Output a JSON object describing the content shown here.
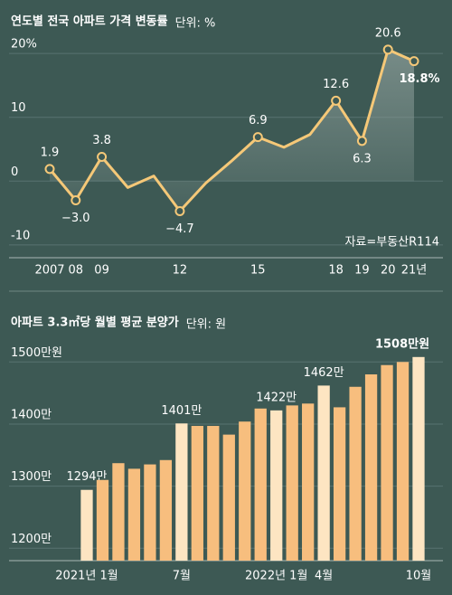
{
  "chart_data": [
    {
      "type": "line",
      "title": "연도별 전국 아파트 가격 변동률",
      "subtitle": "단위: %",
      "source": "자료=부동산R114",
      "categories": [
        "2007",
        "08",
        "09",
        null,
        null,
        "12",
        null,
        null,
        "15",
        null,
        null,
        "18",
        "19",
        "20",
        "21년"
      ],
      "values": [
        1.9,
        -3.0,
        3.8,
        -1.0,
        0.8,
        -4.7,
        -0.3,
        3.2,
        6.9,
        5.3,
        7.3,
        12.6,
        6.3,
        20.6,
        18.8
      ],
      "value_labels": [
        "1.9",
        "−3.0",
        "3.8",
        null,
        null,
        "−4.7",
        null,
        null,
        "6.9",
        null,
        null,
        "12.6",
        "6.3",
        "20.6",
        "18.8%"
      ],
      "color": "#f5c878",
      "ylim": [
        -12,
        22
      ],
      "yticks": [
        {
          "value": 20,
          "label": "20%"
        },
        10,
        0,
        -10
      ],
      "grid": true
    },
    {
      "type": "bar",
      "title": "아파트 3.3㎡당 월별 평균 분양가",
      "subtitle": "단위: 원",
      "categories": [
        "2021년 1월",
        null,
        null,
        null,
        null,
        null,
        "7월",
        null,
        null,
        null,
        null,
        null,
        "2022년 1월",
        null,
        null,
        "4월",
        null,
        null,
        null,
        null,
        null,
        "10월"
      ],
      "values": [
        1294,
        1310,
        1337,
        1328,
        1335,
        1342,
        1401,
        1397,
        1397,
        1383,
        1404,
        1425,
        1422,
        1430,
        1433,
        1462,
        1427,
        1460,
        1480,
        1495,
        1500,
        1508
      ],
      "value_labels": [
        "1294만",
        null,
        null,
        null,
        null,
        null,
        "1401만",
        null,
        null,
        null,
        null,
        null,
        "1422만",
        null,
        null,
        "1462만",
        null,
        null,
        null,
        null,
        null,
        "1508만원"
      ],
      "colors": [
        "#fde5c2",
        "#f7be7e",
        "#f7be7e",
        "#f7be7e",
        "#f7be7e",
        "#f7be7e",
        "#fde5c2",
        "#f7be7e",
        "#f7be7e",
        "#f7be7e",
        "#f7be7e",
        "#f7be7e",
        "#fde5c2",
        "#f7be7e",
        "#f7be7e",
        "#fde5c2",
        "#f7be7e",
        "#f7be7e",
        "#f7be7e",
        "#f7be7e",
        "#f7be7e",
        "#fde5c2"
      ],
      "ylim": [
        1180,
        1515
      ],
      "yticks": [
        {
          "value": 1200,
          "label": "1200만"
        },
        {
          "value": 1300,
          "label": "1300만"
        },
        {
          "value": 1400,
          "label": "1400만"
        },
        {
          "value": 1500,
          "label": "1500만원"
        }
      ],
      "grid": true
    }
  ]
}
